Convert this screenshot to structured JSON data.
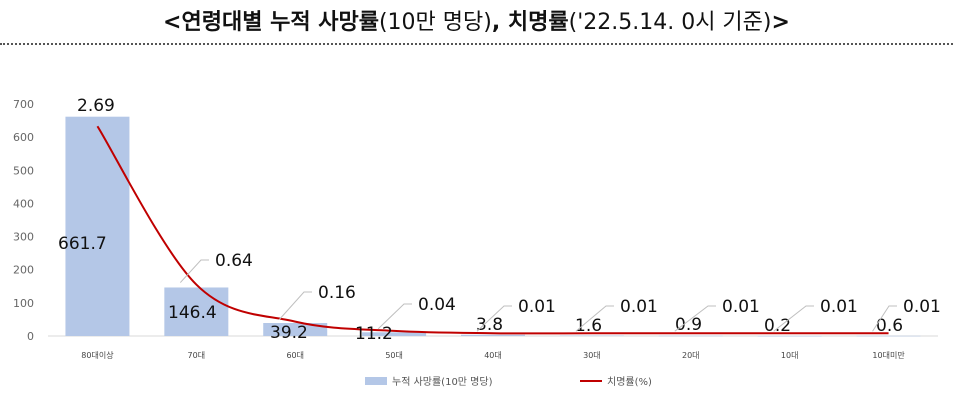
{
  "title": {
    "open": "<",
    "bold1": "연령대별 누적 사망률",
    "reg1": "(10만 명당)",
    "comma": ", ",
    "bold2": "치명률",
    "reg2": "('22.5.14. 0시 기준)",
    "close": ">"
  },
  "chart_data": {
    "type": "bar",
    "categories": [
      "80대이상",
      "70대",
      "60대",
      "50대",
      "40대",
      "30대",
      "20대",
      "10대",
      "10대미만"
    ],
    "ylim": [
      0,
      700
    ],
    "yticks": [
      0,
      100,
      200,
      300,
      400,
      500,
      600,
      700
    ],
    "grid": false,
    "legend_position": "bottom",
    "series": [
      {
        "name": "누적 사망률(10만 명당)",
        "type": "bar",
        "color": "#b4c7e7",
        "values": [
          661.7,
          146.4,
          39.2,
          11.2,
          3.8,
          1.6,
          0.9,
          0.2,
          0.6
        ],
        "labels": [
          "661.7",
          "146.4",
          "39.2",
          "11.2",
          "3.8",
          "1.6",
          "0.9",
          "0.2",
          "0.6"
        ]
      },
      {
        "name": "치명률(%)",
        "type": "line",
        "color": "#c00000",
        "values": [
          2.69,
          0.64,
          0.16,
          0.04,
          0.01,
          0.01,
          0.01,
          0.01,
          0.01
        ],
        "labels": [
          "2.69",
          "0.64",
          "0.16",
          "0.04",
          "0.01",
          "0.01",
          "0.01",
          "0.01",
          "0.01"
        ]
      }
    ]
  }
}
